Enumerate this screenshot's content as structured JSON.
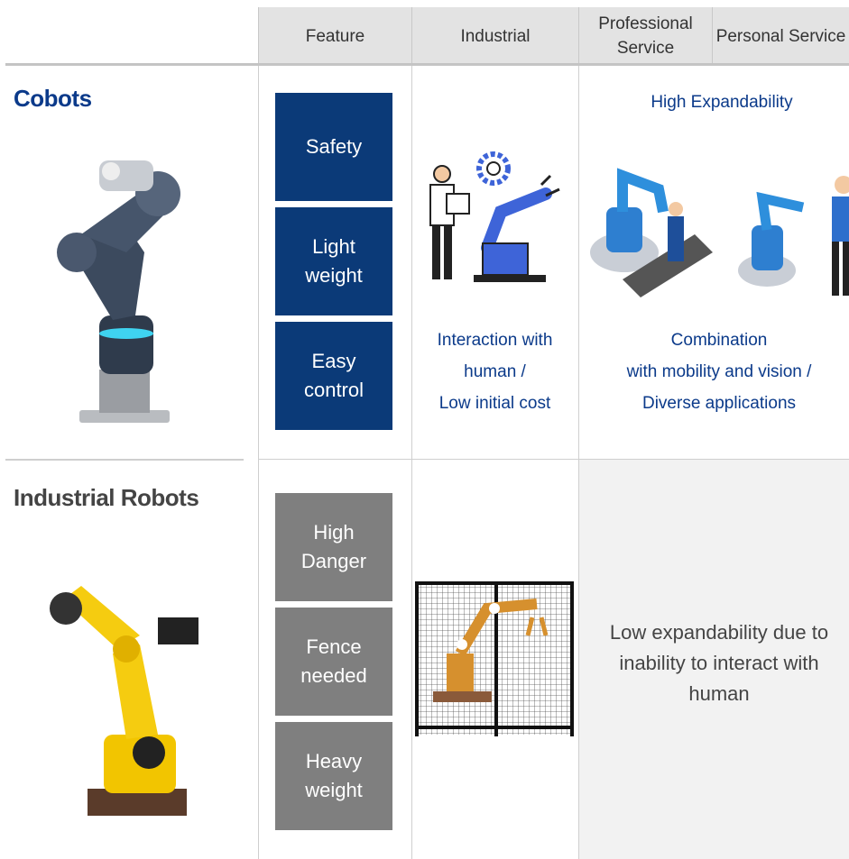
{
  "table": {
    "header": [
      "Feature",
      "Industrial",
      "Professional\nService",
      "Personal Service"
    ],
    "rows": [
      {
        "label": "Cobots",
        "features": [
          "Safety",
          "Light\nweight",
          "Easy\ncontrol"
        ],
        "industrial": "Interaction with\nhuman /\nLow initial cost",
        "service_title": "High Expandability",
        "service": "Combination\nwith mobility and vision /\nDiverse applications"
      },
      {
        "label": "Industrial Robots",
        "features": [
          "High\nDanger",
          "Fence\nneeded",
          "Heavy\nweight"
        ],
        "service": "Low expandability due to\ninability to interact with\nhuman"
      }
    ]
  }
}
